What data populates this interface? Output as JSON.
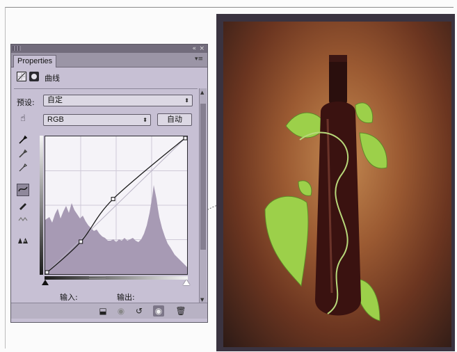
{
  "panel": {
    "tab_label": "Properties",
    "title": "曲线",
    "preset_label": "预设:",
    "preset_value": "自定",
    "channel_value": "RGB",
    "auto_button": "自动",
    "input_label": "输入:",
    "output_label": "输出:"
  },
  "curve": {
    "points": [
      [
        0,
        0
      ],
      [
        64,
        60
      ],
      [
        122,
        139
      ],
      [
        255,
        255
      ]
    ]
  },
  "photo": {
    "subject": "wine bottle with grape leaves"
  },
  "colors": {
    "panel_bg": "#c7c0d4",
    "graph_bg": "#f5f3f8",
    "histogram": "#a79ab4",
    "photo_bg": "#9b5a32",
    "leaf": "#9cd04a"
  },
  "icons": {
    "tools": [
      "targeted-adjust-icon",
      "eyedropper-black-icon",
      "eyedropper-gray-icon",
      "eyedropper-white-icon",
      "curve-point-icon",
      "pencil-icon",
      "smooth-icon",
      "clipping-warning-icon"
    ],
    "bottom": [
      "clip-to-layer-icon",
      "eye-previous-icon",
      "reset-icon",
      "visibility-icon",
      "trash-icon"
    ]
  }
}
